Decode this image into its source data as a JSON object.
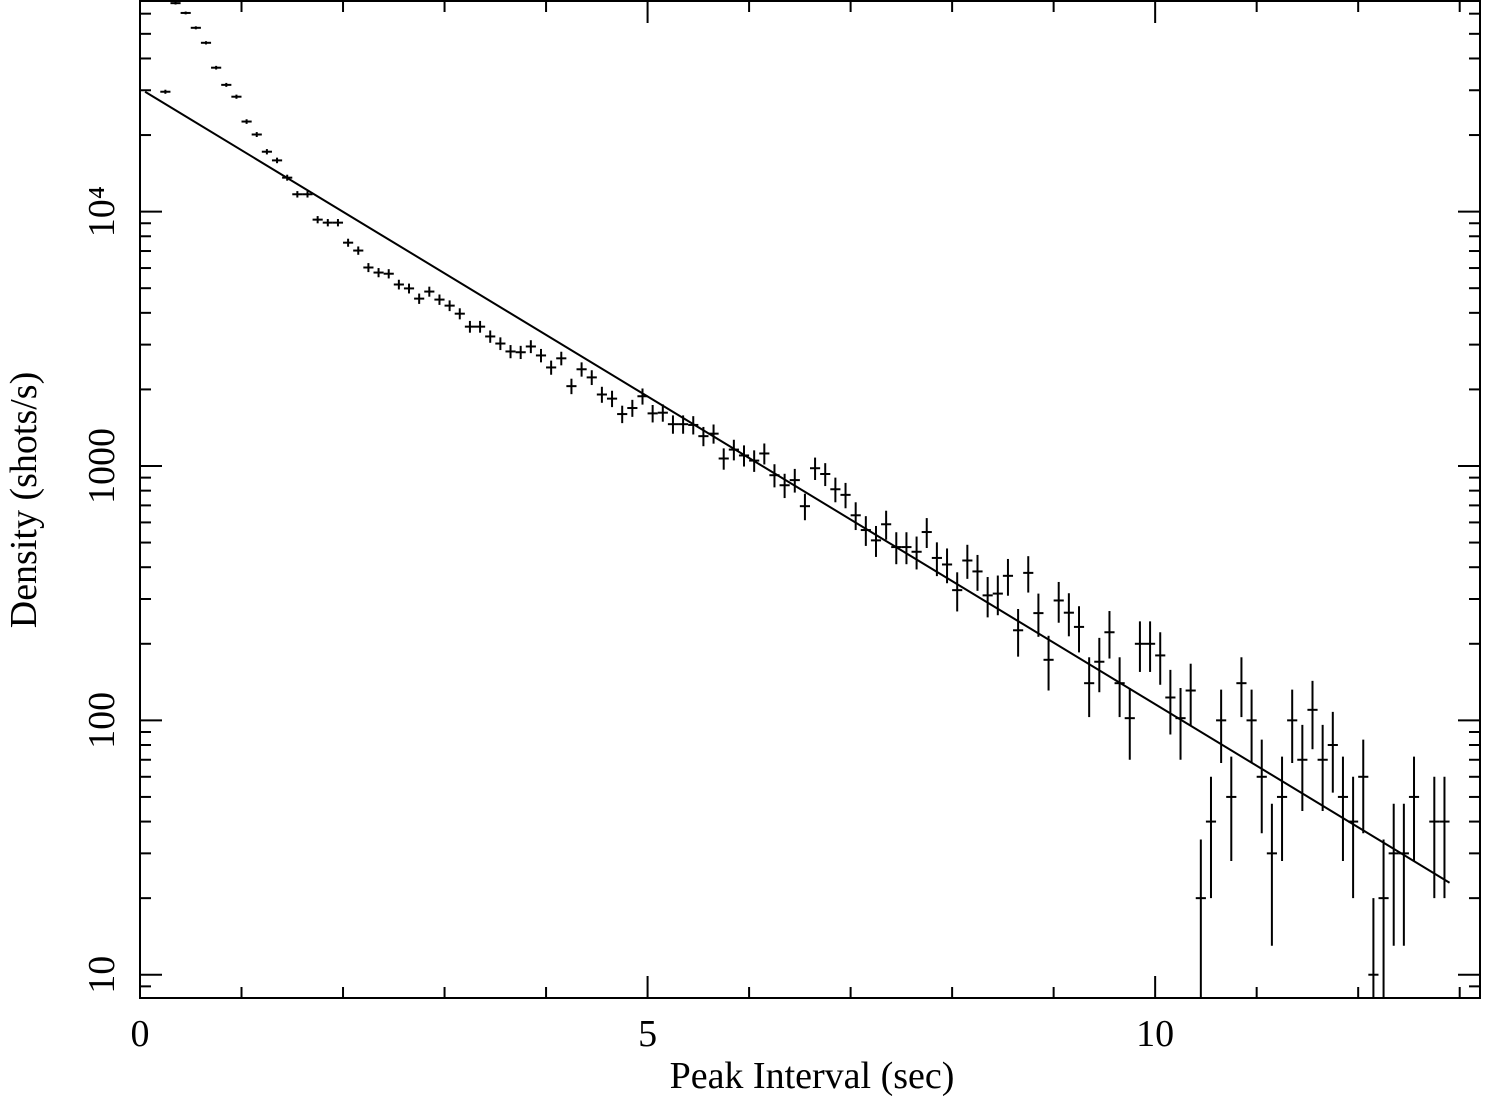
{
  "chart_data": {
    "type": "scatter",
    "xlabel": "Peak Interval (sec)",
    "ylabel": "Density (shots/s)",
    "xlim": [
      0,
      13.2
    ],
    "ylim": [
      8.1,
      67300
    ],
    "ylog": true,
    "xticks": [
      0,
      5,
      10
    ],
    "xminorticks": [
      1,
      2,
      3,
      4,
      6,
      7,
      8,
      9,
      11,
      12,
      13
    ],
    "yticks": [
      10,
      100,
      1000,
      {
        "value": 10000,
        "label": "10⁴"
      }
    ],
    "yminorticks": [
      9,
      20,
      30,
      40,
      50,
      60,
      70,
      80,
      90,
      200,
      300,
      400,
      500,
      600,
      700,
      800,
      900,
      2000,
      3000,
      4000,
      5000,
      6000,
      7000,
      8000,
      9000,
      20000,
      30000,
      40000,
      50000,
      60000
    ],
    "series": [
      {
        "type": "errorbar",
        "color": "#000000",
        "binwidth": 0.1,
        "x": [
          0.25,
          0.35,
          0.45,
          0.55,
          0.65,
          0.75,
          0.85,
          0.95,
          1.05,
          1.15,
          1.25,
          1.35,
          1.45,
          1.55,
          1.65,
          1.75,
          1.85,
          1.95,
          2.05,
          2.15,
          2.25,
          2.35,
          2.45,
          2.55,
          2.65,
          2.75,
          2.85,
          2.95,
          3.05,
          3.15,
          3.25,
          3.35,
          3.45,
          3.55,
          3.65,
          3.75,
          3.85,
          3.95,
          4.05,
          4.15,
          4.25,
          4.35,
          4.45,
          4.55,
          4.65,
          4.75,
          4.85,
          4.95,
          5.05,
          5.15,
          5.25,
          5.35,
          5.45,
          5.55,
          5.65,
          5.75,
          5.85,
          5.95,
          6.05,
          6.15,
          6.25,
          6.35,
          6.45,
          6.55,
          6.65,
          6.75,
          6.85,
          6.95,
          7.05,
          7.15,
          7.25,
          7.35,
          7.45,
          7.55,
          7.65,
          7.75,
          7.85,
          7.95,
          8.05,
          8.15,
          8.25,
          8.35,
          8.45,
          8.55,
          8.65,
          8.75,
          8.85,
          8.95,
          9.05,
          9.15,
          9.25,
          9.35,
          9.45,
          9.55,
          9.65,
          9.75,
          9.85,
          9.95,
          10.05,
          10.15,
          10.25,
          10.35,
          10.45,
          10.55,
          10.65,
          10.75,
          10.85,
          10.95,
          11.05,
          11.15,
          11.25,
          11.35,
          11.45,
          11.55,
          11.65,
          11.75,
          11.85,
          11.95,
          12.05,
          12.15,
          12.25,
          12.35,
          12.45,
          12.55,
          12.75,
          12.85
        ],
        "values": [
          29600,
          66000,
          60400,
          52800,
          46100,
          36800,
          31500,
          28300,
          22600,
          20100,
          17200,
          15900,
          13600,
          11700,
          11700,
          9300,
          9050,
          9050,
          7550,
          7030,
          6030,
          5760,
          5700,
          5170,
          4990,
          4550,
          4850,
          4510,
          4270,
          3970,
          3530,
          3530,
          3230,
          3030,
          2820,
          2800,
          2950,
          2720,
          2440,
          2650,
          2060,
          2400,
          2230,
          1910,
          1840,
          1600,
          1690,
          1880,
          1610,
          1620,
          1460,
          1460,
          1450,
          1310,
          1340,
          1070,
          1160,
          1100,
          1050,
          1120,
          920,
          840,
          880,
          695,
          980,
          930,
          810,
          770,
          640,
          560,
          510,
          590,
          480,
          480,
          460,
          550,
          435,
          410,
          325,
          425,
          385,
          310,
          315,
          370,
          226,
          380,
          264,
          173,
          296,
          265,
          233,
          140,
          170,
          222,
          140,
          102,
          200,
          200,
          180,
          123,
          102,
          131,
          20,
          40,
          100,
          50,
          140,
          100,
          60,
          30,
          50,
          100,
          70,
          110,
          70,
          80,
          50,
          40,
          60,
          10,
          20,
          30,
          30,
          50,
          40,
          40
        ],
        "errors": [
          544,
          812,
          777,
          727,
          679,
          607,
          561,
          532,
          475,
          448,
          415,
          399,
          369,
          342,
          342,
          305,
          301,
          301,
          275,
          265,
          246,
          240,
          239,
          227,
          223,
          213,
          220,
          212,
          207,
          199,
          188,
          188,
          180,
          174,
          168,
          167,
          172,
          165,
          156,
          163,
          144,
          155,
          149,
          138,
          136,
          126,
          130,
          137,
          127,
          127,
          121,
          121,
          120,
          114,
          116,
          103,
          108,
          105,
          102,
          106,
          96,
          92,
          94,
          83,
          99,
          96,
          90,
          88,
          80,
          75,
          71,
          77,
          69,
          69,
          68,
          74,
          66,
          64,
          57,
          65,
          62,
          56,
          56,
          61,
          48,
          62,
          51,
          42,
          54,
          51,
          48,
          37,
          41,
          47,
          37,
          32,
          45,
          45,
          42,
          35,
          32,
          36,
          14,
          20,
          32,
          22,
          37,
          32,
          24,
          17,
          22,
          32,
          26,
          33,
          26,
          28,
          22,
          20,
          24,
          10,
          14,
          17,
          17,
          22,
          20,
          20
        ]
      },
      {
        "type": "line",
        "color": "#000000",
        "x": [
          0.05,
          12.9
        ],
        "values": [
          29600,
          23
        ]
      }
    ]
  }
}
